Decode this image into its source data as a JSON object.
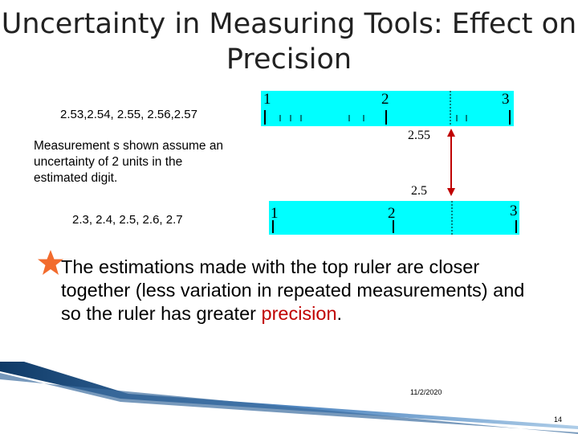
{
  "slide": {
    "title": "Uncertainty in Measuring Tools: Effect on Precision",
    "top_values": "2.53,2.54, 2.55, 2.56,2.57",
    "note": "Measurement s shown assume an uncertainty of 2 units in the estimated digit.",
    "bottom_values": "2.3, 2.4, 2.5, 2.6, 2.7",
    "conclusion_text": "The estimations made with the top ruler are closer together (less variation in repeated measurements) and so the ruler has greater",
    "conclusion_emphasis": "precision",
    "conclusion_end": ".",
    "date": "11/2/2020",
    "page_number": "14"
  },
  "top_ruler": {
    "label1": "1",
    "label2": "2",
    "label3": "3",
    "reading": "2.55",
    "color": "#00ffff"
  },
  "bottom_ruler": {
    "label1": "1",
    "label2": "2",
    "label3": "3",
    "reading": "2.5",
    "color": "#00ffff"
  },
  "colors": {
    "arrow": "#c00000",
    "star": "#f26b2d",
    "emphasis": "#c00000"
  }
}
